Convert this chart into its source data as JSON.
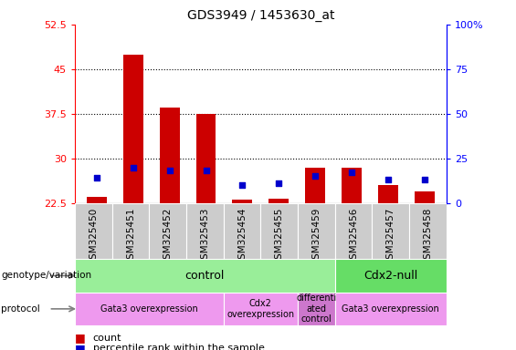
{
  "title": "GDS3949 / 1453630_at",
  "samples": [
    "GSM325450",
    "GSM325451",
    "GSM325452",
    "GSM325453",
    "GSM325454",
    "GSM325455",
    "GSM325459",
    "GSM325456",
    "GSM325457",
    "GSM325458"
  ],
  "count_values": [
    23.5,
    47.5,
    38.5,
    37.5,
    23.0,
    23.2,
    28.5,
    28.5,
    25.5,
    24.5
  ],
  "percentile_values": [
    14,
    20,
    18,
    18,
    10,
    11,
    15,
    17,
    13,
    13
  ],
  "ylim_left": [
    22.5,
    52.5
  ],
  "ylim_right": [
    0,
    100
  ],
  "yticks_left": [
    22.5,
    30,
    37.5,
    45,
    52.5
  ],
  "ytick_labels_left": [
    "22.5",
    "30",
    "37.5",
    "45",
    "52.5"
  ],
  "yticks_right": [
    0,
    25,
    50,
    75,
    100
  ],
  "ytick_labels_right": [
    "0",
    "25",
    "50",
    "75",
    "100%"
  ],
  "bar_color": "#cc0000",
  "percentile_color": "#0000cc",
  "bar_width": 0.55,
  "control_color": "#99ee99",
  "cdx2null_color": "#66dd66",
  "protocol_color1": "#ee99ee",
  "protocol_color2": "#cc77cc",
  "xtick_bg_color": "#cccccc",
  "legend_count_color": "#cc0000",
  "legend_percentile_color": "#0000cc"
}
